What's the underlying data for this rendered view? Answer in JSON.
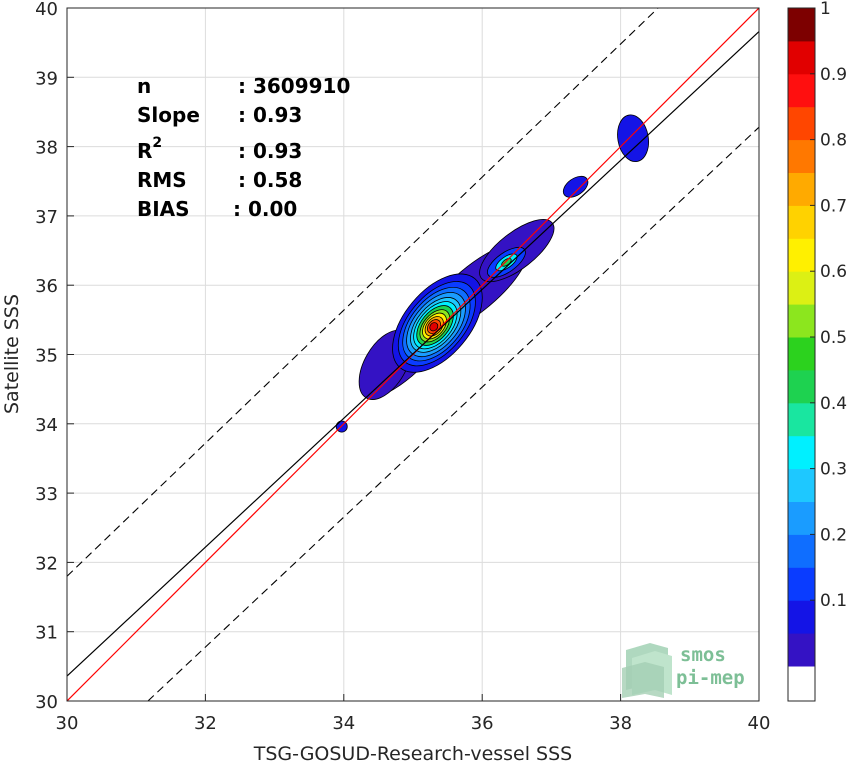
{
  "chart_data": {
    "type": "heatmap",
    "subtype": "density-contour-scatter",
    "xlabel": "TSG-GOSUD-Research-vessel SSS",
    "ylabel": "Satellite SSS",
    "xlim": [
      30,
      40
    ],
    "ylim": [
      30,
      40
    ],
    "xticks": [
      "30",
      "32",
      "34",
      "36",
      "38",
      "40"
    ],
    "yticks": [
      "30",
      "31",
      "32",
      "33",
      "34",
      "35",
      "36",
      "37",
      "38",
      "39",
      "40"
    ],
    "grid": true,
    "stats": [
      {
        "label": "n",
        "value": ": 3609910"
      },
      {
        "label": "Slope",
        "value": ": 0.93"
      },
      {
        "label": "R",
        "sup": "2",
        "value": ": 0.93"
      },
      {
        "label": "RMS",
        "value": ": 0.58"
      },
      {
        "label": "BIAS",
        "value": ": 0.00"
      }
    ],
    "lines": {
      "identity": {
        "slope": 1,
        "intercept": 0,
        "color": "#ff0000"
      },
      "fit": {
        "x": [
          30,
          40
        ],
        "y": [
          30.36,
          39.66
        ],
        "color": "#000000"
      },
      "upper_bound": {
        "x": [
          30,
          40
        ],
        "y": [
          31.8,
          41.4
        ],
        "color": "#000000",
        "style": "dashed"
      },
      "lower_bound": {
        "x": [
          31.17,
          40
        ],
        "y": [
          30,
          38.28
        ],
        "color": "#000000",
        "style": "dashed"
      }
    },
    "contour_levels": [
      0.05,
      0.1,
      0.15,
      0.2,
      0.25,
      0.3,
      0.35,
      0.4,
      0.45,
      0.5,
      0.55,
      0.6,
      0.65,
      0.7,
      0.75,
      0.8,
      0.85,
      0.9,
      0.95,
      1.0
    ],
    "density_peaks": [
      {
        "x": 35.3,
        "y": 35.4,
        "max_level": 0.95
      },
      {
        "x": 36.35,
        "y": 36.33,
        "max_level": 0.45
      },
      {
        "x": 37.35,
        "y": 37.42,
        "max_level": 0.1
      },
      {
        "x": 38.18,
        "y": 38.12,
        "max_level": 0.1
      },
      {
        "x": 33.97,
        "y": 33.96,
        "max_level": 0.05
      }
    ],
    "colorbar": {
      "ticks": [
        "0.1",
        "0.2",
        "0.3",
        "0.4",
        "0.5",
        "0.6",
        "0.7",
        "0.8",
        "0.9",
        "1"
      ],
      "range": [
        0,
        1
      ],
      "colors": [
        "#5c0aa8",
        "#3412c4",
        "#1414e6",
        "#0a3cff",
        "#0f6eff",
        "#1a9cff",
        "#1ec8ff",
        "#00f0ff",
        "#19e6a0",
        "#1ed250",
        "#2cd21e",
        "#8ce61e",
        "#dcf014",
        "#fff000",
        "#ffd200",
        "#ffaa00",
        "#ff7800",
        "#ff4600",
        "#ff0f0f",
        "#e10000",
        "#7d0000"
      ]
    }
  },
  "logo": {
    "line1": "smos",
    "line2": "pi-mep"
  }
}
